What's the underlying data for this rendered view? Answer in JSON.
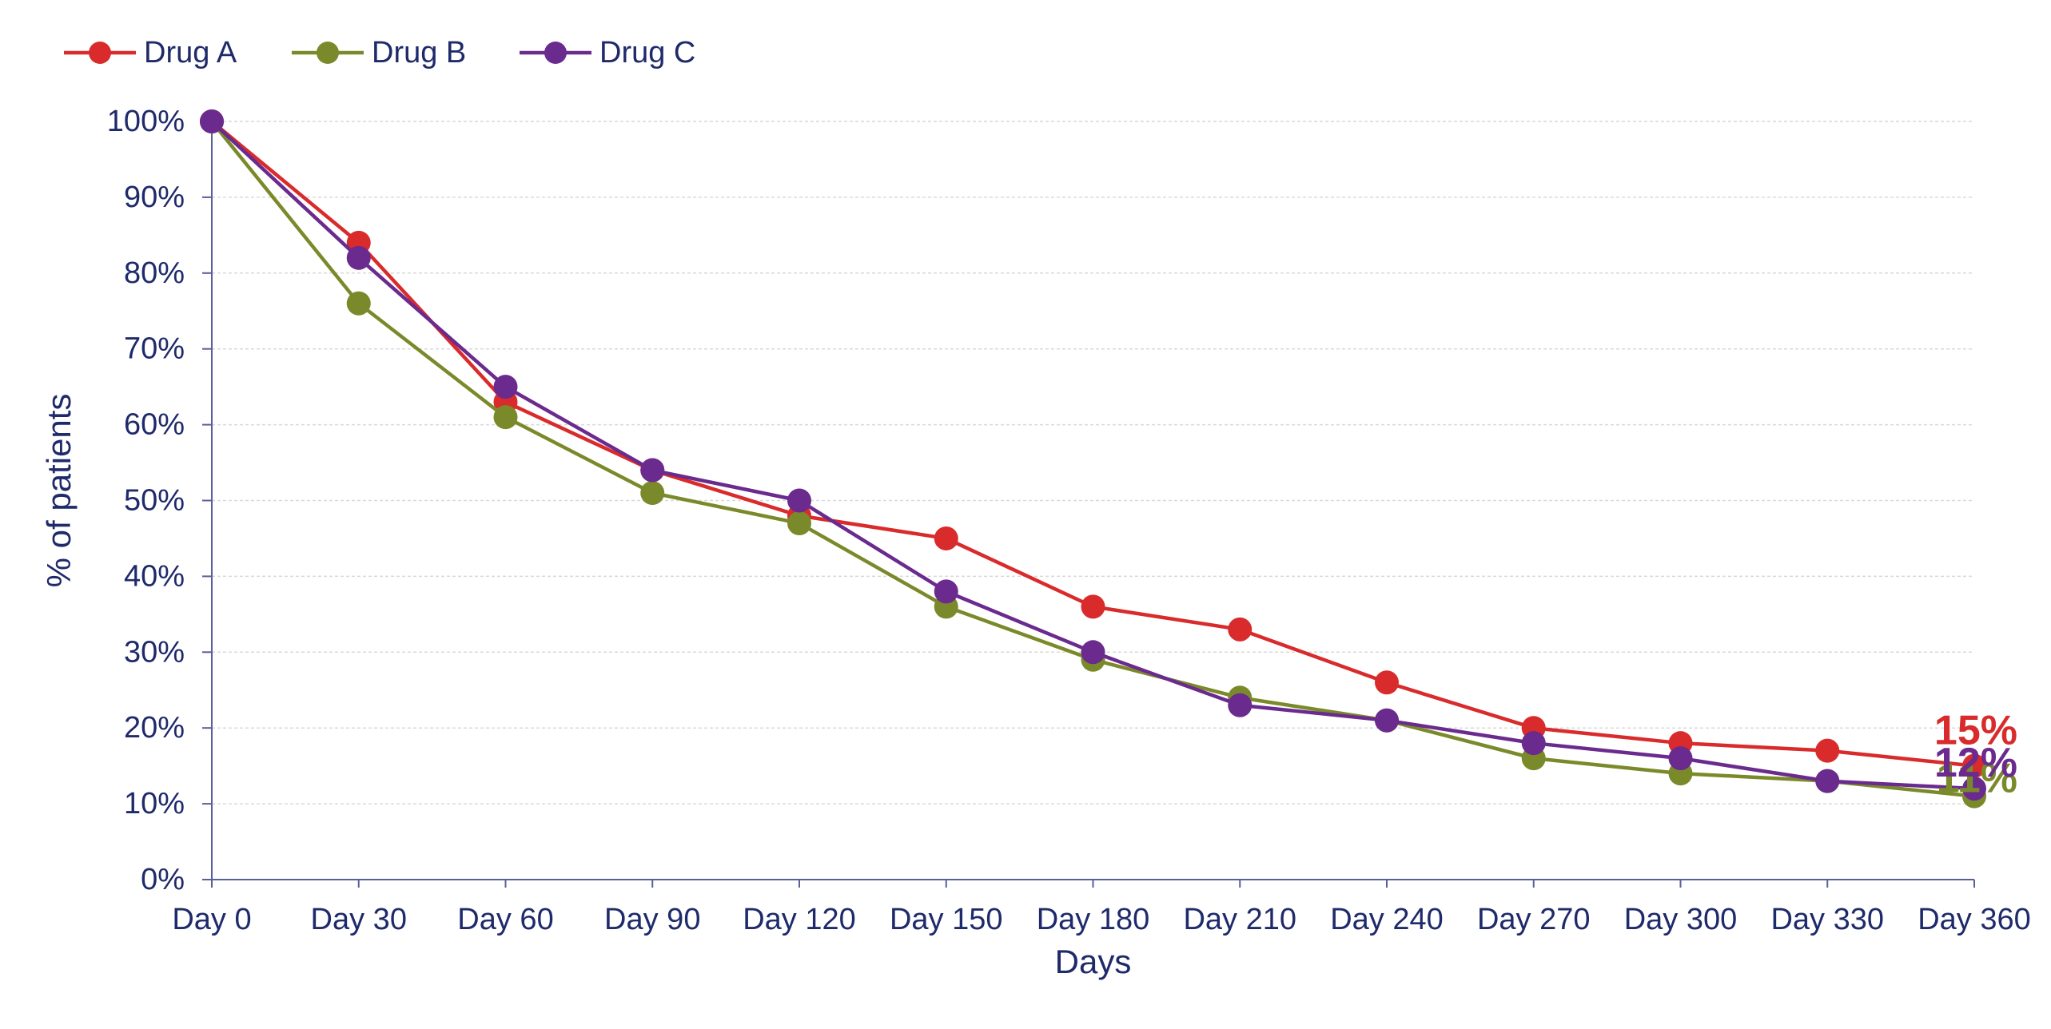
{
  "chart_data": {
    "type": "line",
    "title": "",
    "xlabel": "Days",
    "ylabel": "% of patients",
    "categories": [
      "Day 0",
      "Day 30",
      "Day 60",
      "Day 90",
      "Day 120",
      "Day 150",
      "Day 180",
      "Day 210",
      "Day 240",
      "Day 270",
      "Day 300",
      "Day 330",
      "Day 360"
    ],
    "ylim": [
      0,
      100
    ],
    "yticks": [
      0,
      10,
      20,
      30,
      40,
      50,
      60,
      70,
      80,
      90,
      100
    ],
    "ytick_labels": [
      "0%",
      "10%",
      "20%",
      "30%",
      "40%",
      "50%",
      "60%",
      "70%",
      "80%",
      "90%",
      "100%"
    ],
    "grid": true,
    "legend_position": "top-left",
    "series": [
      {
        "name": "Drug A",
        "color": "#D92B2B",
        "values": [
          100,
          84,
          63,
          54,
          48,
          45,
          36,
          33,
          26,
          20,
          18,
          17,
          15
        ],
        "end_label": "15%"
      },
      {
        "name": "Drug B",
        "color": "#7A8A2A",
        "values": [
          100,
          76,
          61,
          51,
          47,
          36,
          29,
          24,
          21,
          16,
          14,
          13,
          11
        ],
        "end_label": "11%"
      },
      {
        "name": "Drug C",
        "color": "#6A2A8E",
        "values": [
          100,
          82,
          65,
          54,
          50,
          38,
          30,
          23,
          21,
          18,
          16,
          13,
          12
        ],
        "end_label": "12%"
      }
    ],
    "text_color": "#1F2A6B",
    "axis_color": "#5A5F9A",
    "grid_color": "#D9D9D9"
  }
}
